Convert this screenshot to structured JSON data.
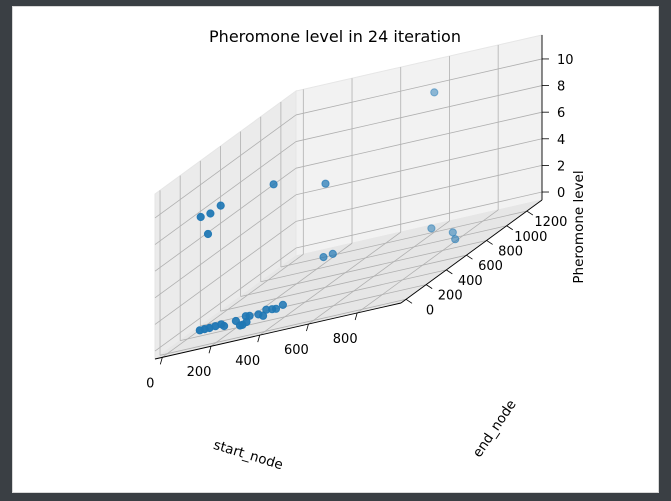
{
  "chart_data": {
    "type": "scatter3d",
    "title": "Pheromone level in 24 iteration",
    "xlabel": "start_node",
    "ylabel": "end_node",
    "zlabel": "Pheromone level",
    "xlim": [
      -30,
      980
    ],
    "ylim": [
      -50,
      1350
    ],
    "zlim": [
      -0.6,
      11.8
    ],
    "xticks": [
      "0",
      "200",
      "400",
      "600",
      "800"
    ],
    "xtick_values": [
      0,
      200,
      400,
      600,
      800
    ],
    "yticks": [
      "0",
      "200",
      "400",
      "600",
      "800",
      "1000",
      "1200"
    ],
    "ytick_values": [
      0,
      200,
      400,
      600,
      800,
      1000,
      1200
    ],
    "zticks": [
      "0",
      "2",
      "4",
      "6",
      "8",
      "10"
    ],
    "ztick_values": [
      0,
      2,
      4,
      6,
      8,
      10
    ],
    "grid": true,
    "color": "#1f77b4",
    "points": [
      {
        "x": 50,
        "y": 210,
        "z": 8.3
      },
      {
        "x": 90,
        "y": 210,
        "z": 8.4
      },
      {
        "x": 120,
        "y": 240,
        "z": 8.7
      },
      {
        "x": 250,
        "y": 450,
        "z": 8.6
      },
      {
        "x": 80,
        "y": 210,
        "z": 6.9
      },
      {
        "x": 360,
        "y": 700,
        "z": 6.8
      },
      {
        "x": 600,
        "y": 1200,
        "z": 9.9
      },
      {
        "x": 100,
        "y": 80,
        "z": 0.3
      },
      {
        "x": 120,
        "y": 80,
        "z": 0.3
      },
      {
        "x": 140,
        "y": 80,
        "z": 0.3
      },
      {
        "x": 160,
        "y": 90,
        "z": 0.3
      },
      {
        "x": 180,
        "y": 100,
        "z": 0.3
      },
      {
        "x": 200,
        "y": 80,
        "z": 0.2
      },
      {
        "x": 240,
        "y": 100,
        "z": 0.3
      },
      {
        "x": 260,
        "y": 150,
        "z": 0.3
      },
      {
        "x": 280,
        "y": 140,
        "z": 0.3
      },
      {
        "x": 320,
        "y": 130,
        "z": 0.3
      },
      {
        "x": 340,
        "y": 160,
        "z": 0.4
      },
      {
        "x": 360,
        "y": 170,
        "z": 0.3
      },
      {
        "x": 380,
        "y": 160,
        "z": 0.3
      },
      {
        "x": 400,
        "y": 180,
        "z": 0.4
      },
      {
        "x": 300,
        "y": 60,
        "z": 0.2
      },
      {
        "x": 360,
        "y": 80,
        "z": 0.3
      },
      {
        "x": 290,
        "y": 20,
        "z": 0.2
      },
      {
        "x": 300,
        "y": 20,
        "z": 0.2
      },
      {
        "x": 360,
        "y": 680,
        "z": 1.4
      },
      {
        "x": 390,
        "y": 700,
        "z": 1.4
      },
      {
        "x": 650,
        "y": 1050,
        "z": 0.3
      },
      {
        "x": 800,
        "y": 900,
        "z": 0.2
      },
      {
        "x": 880,
        "y": 730,
        "z": 0.3
      }
    ]
  }
}
